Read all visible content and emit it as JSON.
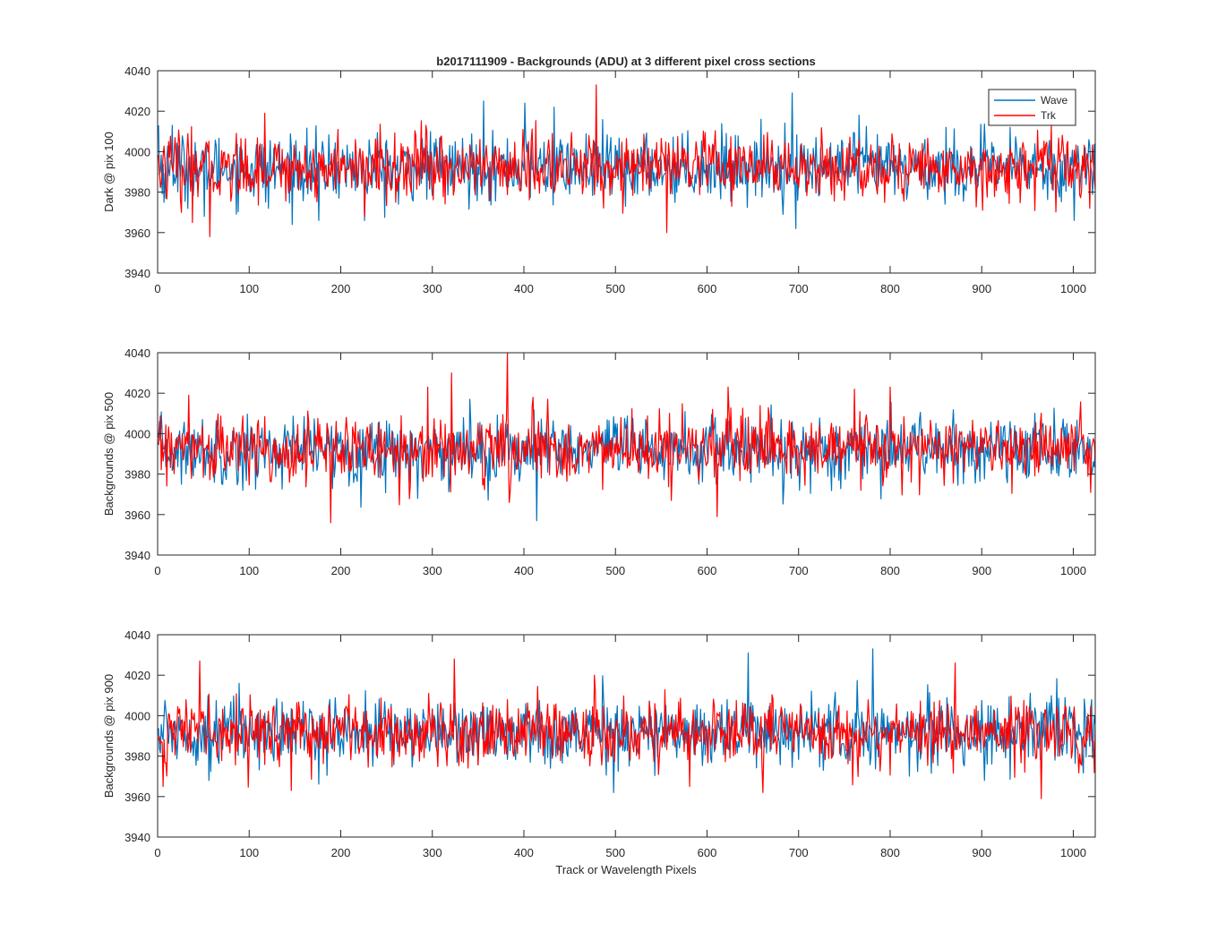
{
  "figure": {
    "title": "b2017111909 - Backgrounds (ADU) at 3 different pixel cross sections",
    "xlabel": "Track or Wavelength Pixels"
  },
  "colors": {
    "wave": "#0072BD",
    "trk": "#FF0000",
    "axis": "#262626"
  },
  "legend": {
    "placement": "top-right (first panel)",
    "items": [
      "Wave",
      "Trk"
    ]
  },
  "chart_data": [
    {
      "type": "line",
      "title": "b2017111909 - Backgrounds (ADU) at 3 different pixel cross sections",
      "xlabel": "",
      "ylabel": "Dark @ pix 100",
      "xlim": [
        0,
        1024
      ],
      "ylim": [
        3940,
        4040
      ],
      "xticks": [
        0,
        100,
        200,
        300,
        400,
        500,
        600,
        700,
        800,
        900,
        1000
      ],
      "yticks": [
        3940,
        3960,
        3980,
        4000,
        4020,
        4040
      ],
      "legend": "top-right",
      "series": [
        {
          "name": "Wave",
          "n_points": 1024,
          "mean": 3992,
          "std": 8,
          "range": [
            3961,
            4029
          ],
          "spikes": [
            [
              0,
              4013
            ],
            [
              8,
              3977
            ],
            [
              15,
              4013
            ],
            [
              50,
              3968
            ],
            [
              120,
              3972
            ],
            [
              175,
              3966
            ],
            [
              225,
              3966
            ],
            [
              262,
              3974
            ],
            [
              355,
              4025
            ],
            [
              400,
              4024
            ],
            [
              432,
              4022
            ],
            [
              510,
              3973
            ],
            [
              606,
              4003
            ],
            [
              620,
              4009
            ],
            [
              692,
              4029
            ],
            [
              696,
              3962
            ],
            [
              765,
              4018
            ],
            [
              860,
              4012
            ],
            [
              1000,
              3966
            ]
          ]
        },
        {
          "name": "Trk",
          "n_points": 1024,
          "mean": 3992,
          "std": 8,
          "range": [
            3958,
            4033
          ],
          "spikes": [
            [
              25,
              3970
            ],
            [
              37,
              3965
            ],
            [
              56,
              3958
            ],
            [
              116,
              4019
            ],
            [
              196,
              4011
            ],
            [
              225,
              3968
            ],
            [
              292,
              4013
            ],
            [
              478,
              4033
            ],
            [
              555,
              3960
            ],
            [
              626,
              3973
            ],
            [
              900,
              3971
            ],
            [
              975,
              4013
            ],
            [
              1017,
              3972
            ]
          ]
        }
      ]
    },
    {
      "type": "line",
      "title": "",
      "xlabel": "",
      "ylabel": "Backgrounds @ pix 500",
      "xlim": [
        0,
        1024
      ],
      "ylim": [
        3940,
        4040
      ],
      "xticks": [
        0,
        100,
        200,
        300,
        400,
        500,
        600,
        700,
        800,
        900,
        1000
      ],
      "yticks": [
        3940,
        3960,
        3980,
        4000,
        4020,
        4040
      ],
      "series": [
        {
          "name": "Wave",
          "n_points": 1024,
          "mean": 3992,
          "std": 8,
          "range": [
            3957,
            4017
          ],
          "spikes": [
            [
              25,
              3975
            ],
            [
              92,
              3972
            ],
            [
              283,
              3968
            ],
            [
              340,
              4017
            ],
            [
              413,
              3957
            ],
            [
              590,
              3975
            ],
            [
              700,
              3972
            ],
            [
              930,
              4006
            ]
          ]
        },
        {
          "name": "Trk",
          "n_points": 1024,
          "mean": 3992,
          "std": 8,
          "range": [
            3956,
            4040
          ],
          "spikes": [
            [
              33,
              4019
            ],
            [
              188,
              3956
            ],
            [
              294,
              4023
            ],
            [
              320,
              4030
            ],
            [
              381,
              4040
            ],
            [
              383,
              3966
            ],
            [
              425,
              4017
            ],
            [
              560,
              3967
            ],
            [
              610,
              3959
            ],
            [
              622,
              4023
            ],
            [
              760,
              4022
            ],
            [
              799,
              4023
            ],
            [
              1018,
              3971
            ]
          ]
        }
      ]
    },
    {
      "type": "line",
      "title": "",
      "xlabel": "Track or Wavelength Pixels",
      "ylabel": "Backgrounds @ pix 900",
      "xlim": [
        0,
        1024
      ],
      "ylim": [
        3940,
        4040
      ],
      "xticks": [
        0,
        100,
        200,
        300,
        400,
        500,
        600,
        700,
        800,
        900,
        1000
      ],
      "yticks": [
        3940,
        3960,
        3980,
        4000,
        4020,
        4040
      ],
      "series": [
        {
          "name": "Wave",
          "n_points": 1024,
          "mean": 3992,
          "std": 8,
          "range": [
            3962,
            4033
          ],
          "spikes": [
            [
              55,
              3968
            ],
            [
              88,
              4016
            ],
            [
              497,
              3962
            ],
            [
              644,
              4031
            ],
            [
              780,
              4033
            ],
            [
              902,
              3968
            ],
            [
              1020,
              3979
            ]
          ]
        },
        {
          "name": "Trk",
          "n_points": 1024,
          "mean": 3992,
          "std": 8,
          "range": [
            3959,
            4028
          ],
          "spikes": [
            [
              5,
              3965
            ],
            [
              45,
              4027
            ],
            [
              145,
              3963
            ],
            [
              323,
              4028
            ],
            [
              476,
              4020
            ],
            [
              580,
              3965
            ],
            [
              660,
              3962
            ],
            [
              870,
              4026
            ],
            [
              964,
              3959
            ],
            [
              990,
              4005
            ]
          ]
        }
      ]
    }
  ]
}
